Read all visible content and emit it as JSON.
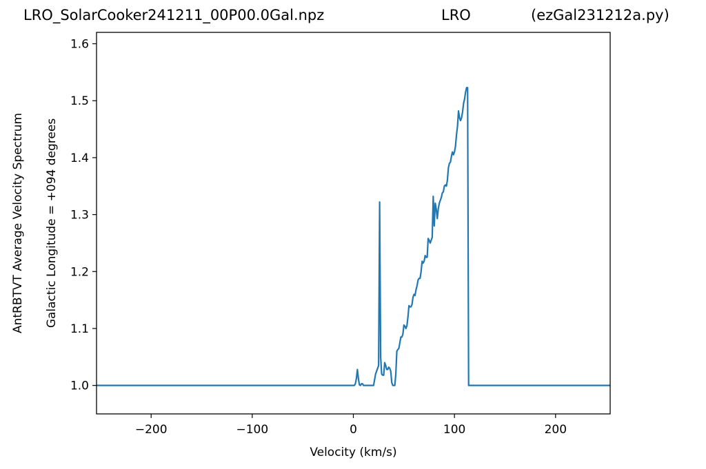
{
  "title": {
    "left": "LRO_SolarCooker241211_00P00.0Gal.npz",
    "center": "LRO",
    "right": "(ezGal231212a.py)"
  },
  "chart_data": {
    "type": "line",
    "xlabel": "Velocity (km/s)",
    "ylabel_outer": "AntRBTVT Average Velocity Spectrum",
    "ylabel_inner": "Galactic Longitude = +094 degrees",
    "xlim": [
      -254,
      254
    ],
    "ylim": [
      0.95,
      1.62
    ],
    "xticks": [
      -200,
      -100,
      0,
      100,
      200
    ],
    "xtick_labels": [
      "−200",
      "−100",
      "0",
      "100",
      "200"
    ],
    "yticks": [
      1.0,
      1.1,
      1.2,
      1.3,
      1.4,
      1.5,
      1.6
    ],
    "ytick_labels": [
      "1.0",
      "1.1",
      "1.2",
      "1.3",
      "1.4",
      "1.5",
      "1.6"
    ],
    "line_color": "#1f77b4",
    "grid": false,
    "series": [
      {
        "x": [
          -254,
          0,
          1,
          2,
          3,
          4,
          5,
          6,
          7,
          8,
          9,
          10,
          12,
          14,
          16,
          18,
          20,
          22,
          24,
          25,
          26,
          27,
          28,
          29,
          30,
          31,
          32,
          33,
          34,
          35,
          36,
          37,
          38,
          39,
          40,
          41,
          42,
          43,
          44,
          45,
          46,
          47,
          48,
          49,
          50,
          51,
          52,
          53,
          54,
          55,
          56,
          57,
          58,
          59,
          60,
          61,
          62,
          63,
          64,
          65,
          66,
          67,
          68,
          69,
          70,
          71,
          72,
          73,
          74,
          75,
          76,
          77,
          78,
          79,
          80,
          81,
          82,
          83,
          84,
          85,
          86,
          87,
          88,
          89,
          90,
          91,
          92,
          93,
          94,
          95,
          96,
          97,
          98,
          99,
          100,
          101,
          102,
          103,
          104,
          105,
          106,
          107,
          108,
          109,
          110,
          111,
          112,
          113,
          114,
          115,
          116,
          117,
          118,
          119,
          120,
          121,
          122,
          123,
          124,
          125,
          126,
          127,
          128,
          129,
          130,
          131,
          254
        ],
        "y": [
          1.0,
          1.0,
          1.0,
          1.003,
          1.012,
          1.028,
          1.012,
          1.001,
          1.0,
          1.003,
          1.003,
          1.0,
          1.0,
          1.0,
          1.0,
          1.0,
          1.0,
          1.02,
          1.03,
          1.035,
          1.322,
          1.05,
          1.02,
          1.018,
          1.018,
          1.04,
          1.035,
          1.028,
          1.028,
          1.032,
          1.03,
          1.025,
          1.005,
          1.0,
          1.0,
          1.0,
          1.02,
          1.06,
          1.063,
          1.065,
          1.075,
          1.085,
          1.085,
          1.09,
          1.106,
          1.104,
          1.1,
          1.105,
          1.12,
          1.14,
          1.138,
          1.138,
          1.142,
          1.155,
          1.16,
          1.158,
          1.168,
          1.175,
          1.185,
          1.188,
          1.188,
          1.2,
          1.218,
          1.215,
          1.218,
          1.228,
          1.225,
          1.225,
          1.258,
          1.255,
          1.25,
          1.255,
          1.26,
          1.332,
          1.28,
          1.32,
          1.31,
          1.293,
          1.31,
          1.32,
          1.325,
          1.33,
          1.338,
          1.34,
          1.35,
          1.352,
          1.35,
          1.36,
          1.382,
          1.39,
          1.392,
          1.402,
          1.41,
          1.405,
          1.41,
          1.42,
          1.44,
          1.455,
          1.482,
          1.47,
          1.465,
          1.47,
          1.48,
          1.495,
          1.503,
          1.515,
          1.523,
          1.523,
          1.0,
          1.0,
          1.0,
          1.0,
          1.0,
          1.0,
          1.0,
          1.0,
          1.0,
          1.0,
          1.0,
          1.0,
          1.0,
          1.0,
          1.0,
          1.0,
          1.0,
          1.0,
          1.0
        ]
      }
    ]
  }
}
